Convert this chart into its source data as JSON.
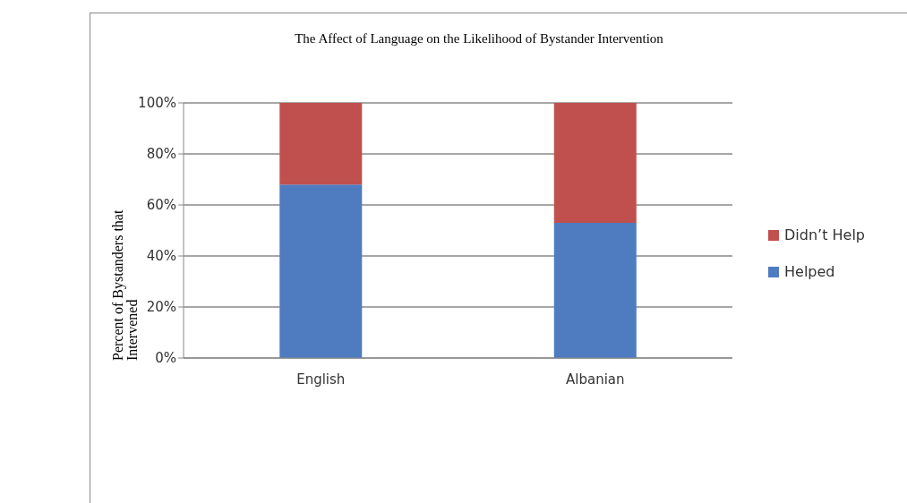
{
  "chart_data": {
    "type": "bar",
    "title": "The Affect of Language on the Likelihood of Bystander Intervention",
    "ylabel": "Percent of Bystanders that Intervened",
    "categories": [
      "English",
      "Albanian"
    ],
    "stacked": true,
    "series": [
      {
        "name": "Helped",
        "color": "#4f7bc1",
        "values": [
          68,
          53
        ]
      },
      {
        "name": "Didn’t Help",
        "color": "#c0504d",
        "values": [
          32,
          47
        ]
      }
    ],
    "ylim": [
      0,
      100
    ],
    "yticks": [
      {
        "value": 0,
        "label": "0%"
      },
      {
        "value": 20,
        "label": "20%"
      },
      {
        "value": 40,
        "label": "40%"
      },
      {
        "value": 60,
        "label": "60%"
      },
      {
        "value": 80,
        "label": "80%"
      },
      {
        "value": 100,
        "label": "100%"
      }
    ],
    "grid": "y",
    "legend": "right"
  }
}
